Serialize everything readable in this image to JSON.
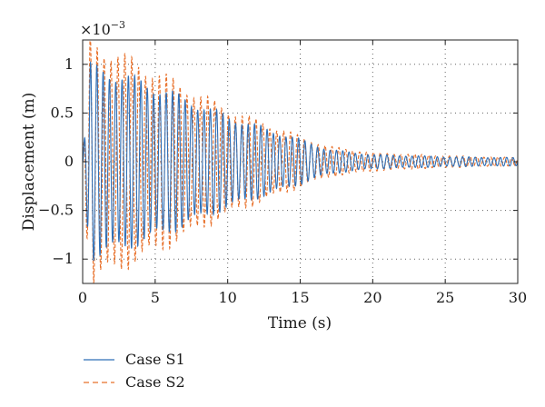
{
  "chart_data": {
    "type": "line",
    "title": "",
    "xlabel": "Time (s)",
    "ylabel": "Displacement (m)",
    "y_multiplier_label": "×10",
    "y_multiplier_exponent": "−3",
    "y_multiplier": 0.001,
    "xlim": [
      0,
      30
    ],
    "ylim": [
      -1.25,
      1.25
    ],
    "xticks": [
      0,
      5,
      10,
      15,
      20,
      25,
      30
    ],
    "xtick_labels": [
      "0",
      "5",
      "10",
      "15",
      "20",
      "25",
      "30"
    ],
    "yticks": [
      1,
      0.5,
      0,
      -0.5,
      -1
    ],
    "ytick_labels": [
      "1",
      "0.5",
      "0",
      "−0.5",
      "−1"
    ],
    "grid": true,
    "legend_position": "bottom-left, below plot",
    "series": [
      {
        "name": "Case S1",
        "color": "#2e6fb7",
        "style": "solid",
        "dominant_frequency_hz": 2.3,
        "envelope": {
          "t": [
            0,
            0.5,
            2,
            5,
            10,
            15,
            17,
            20,
            25,
            30
          ],
          "amplitude": [
            0.0,
            0.95,
            0.9,
            0.75,
            0.45,
            0.22,
            0.12,
            0.07,
            0.05,
            0.04
          ]
        }
      },
      {
        "name": "Case S2",
        "color": "#e8702a",
        "style": "dashed",
        "dominant_frequency_hz": 2.1,
        "envelope": {
          "t": [
            0,
            0.5,
            2,
            5,
            10,
            15,
            17,
            20,
            25,
            30
          ],
          "amplitude": [
            0.0,
            1.22,
            1.1,
            0.9,
            0.52,
            0.25,
            0.15,
            0.09,
            0.06,
            0.04
          ]
        }
      }
    ]
  }
}
